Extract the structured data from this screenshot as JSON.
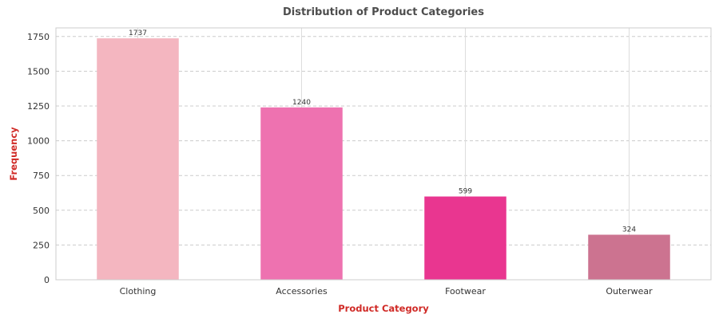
{
  "chart_data": {
    "type": "bar",
    "title": "Distribution of Product Categories",
    "xlabel": "Product Category",
    "ylabel": "Frequency",
    "categories": [
      "Clothing",
      "Accessories",
      "Footwear",
      "Outerwear"
    ],
    "values": [
      1737,
      1240,
      599,
      324
    ],
    "data_labels": [
      "1737",
      "1240",
      "599",
      "324"
    ],
    "colors": [
      "#f4b6c0",
      "#ee72b0",
      "#e93690",
      "#cc7390"
    ],
    "ylim": [
      0,
      1812
    ],
    "yticks": [
      0,
      250,
      500,
      750,
      1000,
      1250,
      1500,
      1750
    ],
    "ytick_labels": [
      "0",
      "250",
      "500",
      "750",
      "1000",
      "1250",
      "1500",
      "1750"
    ],
    "grid": true,
    "legend": "none"
  }
}
